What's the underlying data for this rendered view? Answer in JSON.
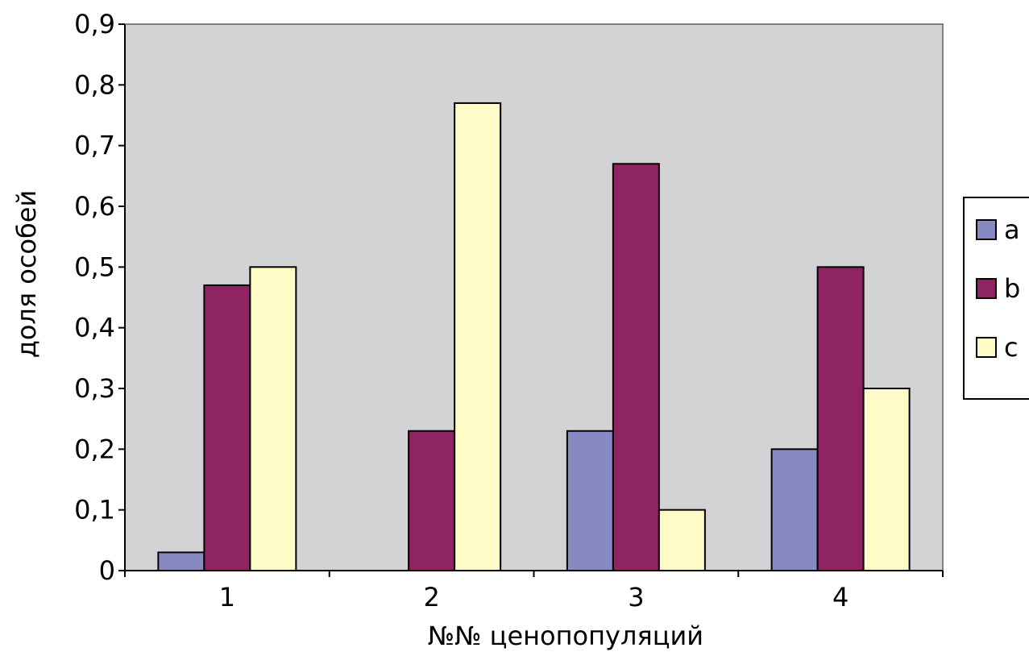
{
  "chart_data": {
    "type": "bar",
    "categories": [
      "1",
      "2",
      "3",
      "4"
    ],
    "series": [
      {
        "name": "a",
        "values": [
          0.03,
          0,
          0.23,
          0.2
        ],
        "color": "#8789c3"
      },
      {
        "name": "b",
        "values": [
          0.47,
          0.23,
          0.67,
          0.5
        ],
        "color": "#8e2461"
      },
      {
        "name": "c",
        "values": [
          0.5,
          0.77,
          0.1,
          0.3
        ],
        "color": "#fffbc6"
      }
    ],
    "yticks": [
      "0",
      "0,1",
      "0,2",
      "0,3",
      "0,4",
      "0,5",
      "0,6",
      "0,7",
      "0,8",
      "0,9"
    ],
    "ylim": [
      0,
      0.9
    ],
    "title": "",
    "xlabel": "№№ ценопопуляций",
    "ylabel": "доля особей",
    "plot_background": "#d3d3d5",
    "grid": false,
    "legend": "right"
  }
}
